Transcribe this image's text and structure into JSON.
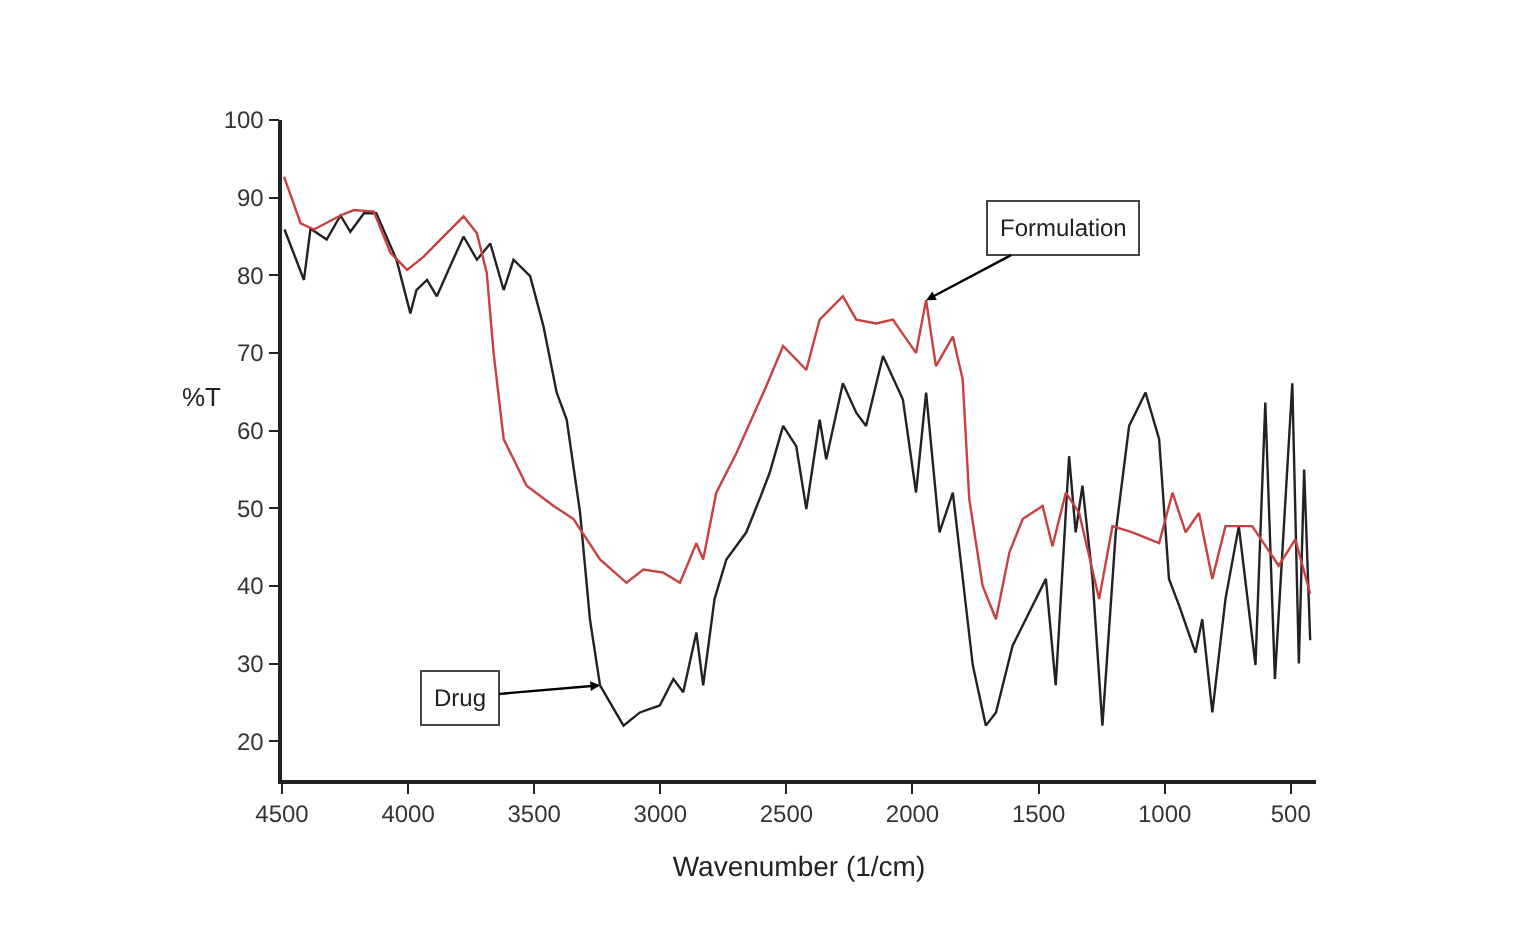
{
  "chart_data": {
    "type": "line",
    "xlabel": "Wavenumber (1/cm)",
    "ylabel": "%T",
    "xlim": [
      4500,
      400
    ],
    "xticks": [
      4500,
      4000,
      3500,
      3000,
      2500,
      2000,
      1500,
      1000,
      500
    ],
    "ylim": [
      15,
      100
    ],
    "yticks": [
      20,
      30,
      40,
      50,
      60,
      70,
      80,
      90,
      100
    ],
    "marker": "none",
    "line_style": "solid",
    "series": [
      {
        "color": "#222222",
        "x": [
          4490,
          4413,
          4387,
          4323,
          4268,
          4229,
          4175,
          4126,
          4046,
          3991,
          3967,
          3925,
          3886,
          3833,
          3780,
          3727,
          3674,
          3621,
          3582,
          3516,
          3463,
          3411,
          3371,
          3318,
          3279,
          3239,
          3146,
          3081,
          3002,
          2948,
          2909,
          2857,
          2830,
          2785,
          2738,
          2659,
          2606,
          2566,
          2513,
          2461,
          2421,
          2368,
          2342,
          2276,
          2223,
          2184,
          2117,
          2038,
          1986,
          1946,
          1893,
          1840,
          1761,
          1709,
          1669,
          1603,
          1537,
          1471,
          1432,
          1379,
          1353,
          1326,
          1286,
          1247,
          1194,
          1141,
          1076,
          1022,
          983,
          943,
          878,
          851,
          811,
          759,
          706,
          640,
          601,
          563,
          494,
          468,
          447,
          423
        ],
        "values": [
          85.9,
          79.4,
          86,
          84.6,
          87.7,
          85.6,
          88,
          88,
          82,
          75.1,
          78.1,
          79.4,
          77.3,
          81.2,
          85,
          82,
          84.1,
          78.1,
          82,
          79.9,
          73.4,
          64.9,
          61.4,
          49.4,
          35.7,
          27.2,
          22,
          23.7,
          24.6,
          28,
          26.3,
          34,
          27.2,
          38.3,
          43.4,
          46.9,
          51.2,
          54.6,
          60.6,
          58,
          49.9,
          61.4,
          56.3,
          66.1,
          62.3,
          60.6,
          69.6,
          64,
          52,
          64.9,
          46.9,
          52,
          29.8,
          22,
          23.7,
          32.3,
          36.6,
          40.9,
          27.2,
          56.7,
          46.9,
          52.9,
          40.9,
          22,
          46.9,
          60.6,
          64.9,
          58.9,
          40.9,
          37.5,
          31.4,
          35.7,
          23.7,
          38.3,
          47.7,
          29.8,
          63.6,
          28,
          66.1,
          30,
          55,
          33
        ]
      },
      {
        "color": "#c84040",
        "x": [
          4492,
          4426,
          4373,
          4268,
          4215,
          4136,
          4070,
          4004,
          3938,
          3872,
          3780,
          3727,
          3688,
          3661,
          3621,
          3530,
          3423,
          3344,
          3239,
          3134,
          3067,
          2988,
          2922,
          2857,
          2830,
          2778,
          2698,
          2580,
          2513,
          2421,
          2368,
          2276,
          2223,
          2144,
          2078,
          1986,
          1946,
          1907,
          1840,
          1801,
          1775,
          1722,
          1669,
          1616,
          1563,
          1484,
          1445,
          1392,
          1339,
          1260,
          1207,
          1128,
          1022,
          969,
          917,
          864,
          811,
          759,
          653,
          548,
          482,
          423
        ],
        "values": [
          92.7,
          86.7,
          85.9,
          87.7,
          88.4,
          88.2,
          82.9,
          80.7,
          82.4,
          84.6,
          87.6,
          85.4,
          80.3,
          70,
          58.9,
          52.9,
          50.3,
          48.6,
          43.4,
          40.4,
          42.1,
          41.7,
          40.4,
          45.5,
          43.4,
          52,
          57.1,
          65.7,
          70.9,
          67.8,
          74.3,
          77.3,
          74.3,
          73.8,
          74.3,
          70,
          76.8,
          68.3,
          72.1,
          66.6,
          51.2,
          40,
          35.7,
          44.3,
          48.6,
          50.3,
          45.1,
          52,
          49.4,
          38.3,
          47.7,
          46.9,
          45.5,
          52,
          46.9,
          49.4,
          40.9,
          47.7,
          47.7,
          42.6,
          46,
          39
        ]
      }
    ],
    "annotations": [
      {
        "text": "Drug",
        "x": 3239,
        "y": 27.2
      },
      {
        "text": "Formulation",
        "x": 1946,
        "y": 76.8
      }
    ]
  }
}
